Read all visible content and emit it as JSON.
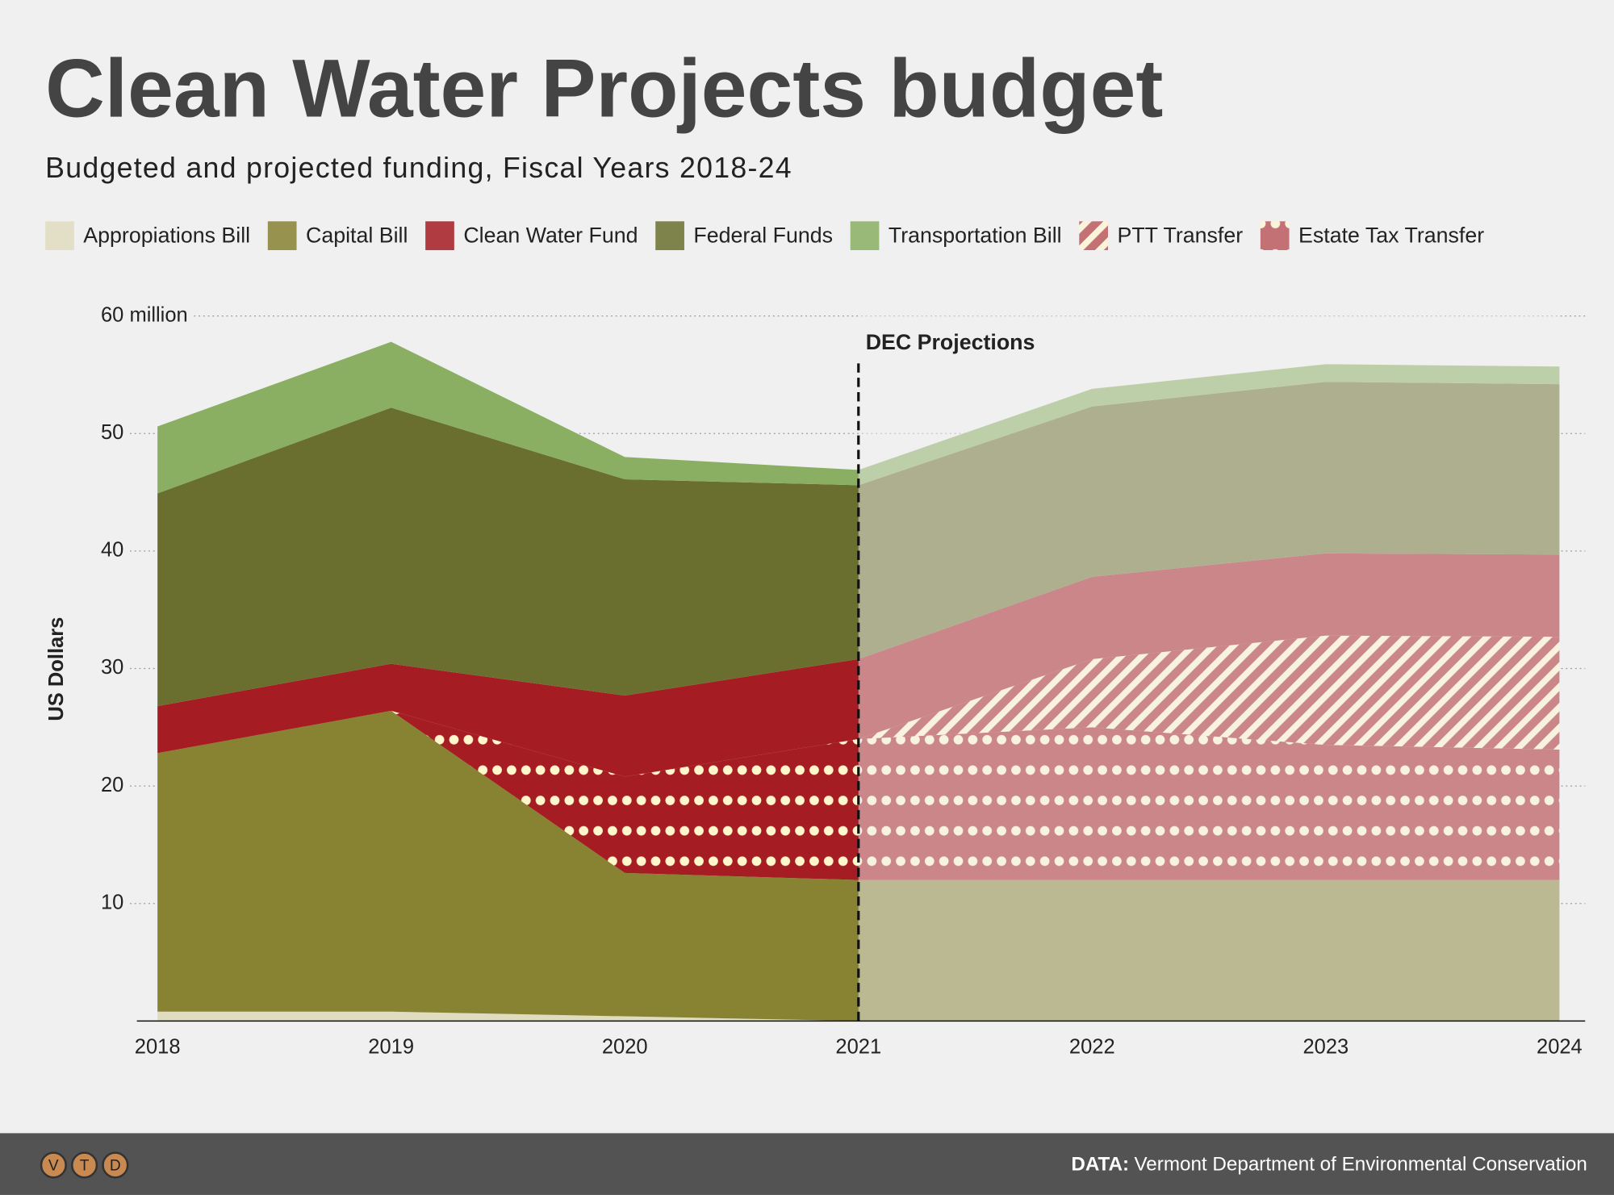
{
  "chart_data": {
    "type": "stacked-area",
    "title": "Clean Water Projects budget",
    "subtitle": "Budgeted and projected funding, Fiscal Years 2018-24",
    "y_label": "US Dollars",
    "x": [
      2018,
      2019,
      2020,
      2021,
      2022,
      2023,
      2024
    ],
    "xlim": [
      2018,
      2024
    ],
    "xticks": [
      2018,
      2019,
      2020,
      2021,
      2022,
      2023,
      2024
    ],
    "ylim": [
      0,
      60
    ],
    "yticks": [
      10,
      20,
      30,
      40,
      50,
      {
        "value": 60,
        "label": "60 million"
      }
    ],
    "grid": true,
    "annotation": {
      "text": "DEC Projections",
      "x": 2021
    },
    "series": [
      {
        "name": "Appropiations Bill",
        "color": "#e0dcbf",
        "values": [
          0.8,
          0.8,
          0.4,
          0,
          0,
          0,
          0
        ]
      },
      {
        "name": "Capital Bill",
        "color": "#878333",
        "values": [
          22.0,
          25.6,
          12.2,
          12.0,
          12.0,
          12.0,
          12.0
        ]
      },
      {
        "name": "Clean Water Fund",
        "color": "#a51c22",
        "values": [
          4.0,
          4.0,
          6.9,
          6.8,
          7.0,
          7.0,
          7.0
        ]
      },
      {
        "name": "Federal Funds",
        "color": "#6a6e2e",
        "values": [
          18.1,
          21.8,
          18.4,
          14.8,
          14.5,
          14.6,
          14.5
        ]
      },
      {
        "name": "Transportation Bill",
        "color": "#8aaf63",
        "values": [
          5.7,
          5.6,
          1.9,
          1.3,
          1.5,
          1.5,
          1.5
        ]
      },
      {
        "name": "PTT Transfer",
        "color": "#a51c22",
        "pattern": "hatch",
        "values": [
          0,
          0,
          0,
          0,
          5.8,
          9.3,
          9.6
        ]
      },
      {
        "name": "Estate Tax Transfer",
        "color": "#a51c22",
        "pattern": "dots",
        "values": [
          0,
          0,
          8.2,
          12.0,
          13.0,
          11.5,
          11.1
        ]
      }
    ]
  },
  "footer": {
    "logo": [
      "V",
      "T",
      "D"
    ],
    "source_label": "DATA:",
    "source": "Vermont Department of Environmental Conservation"
  }
}
